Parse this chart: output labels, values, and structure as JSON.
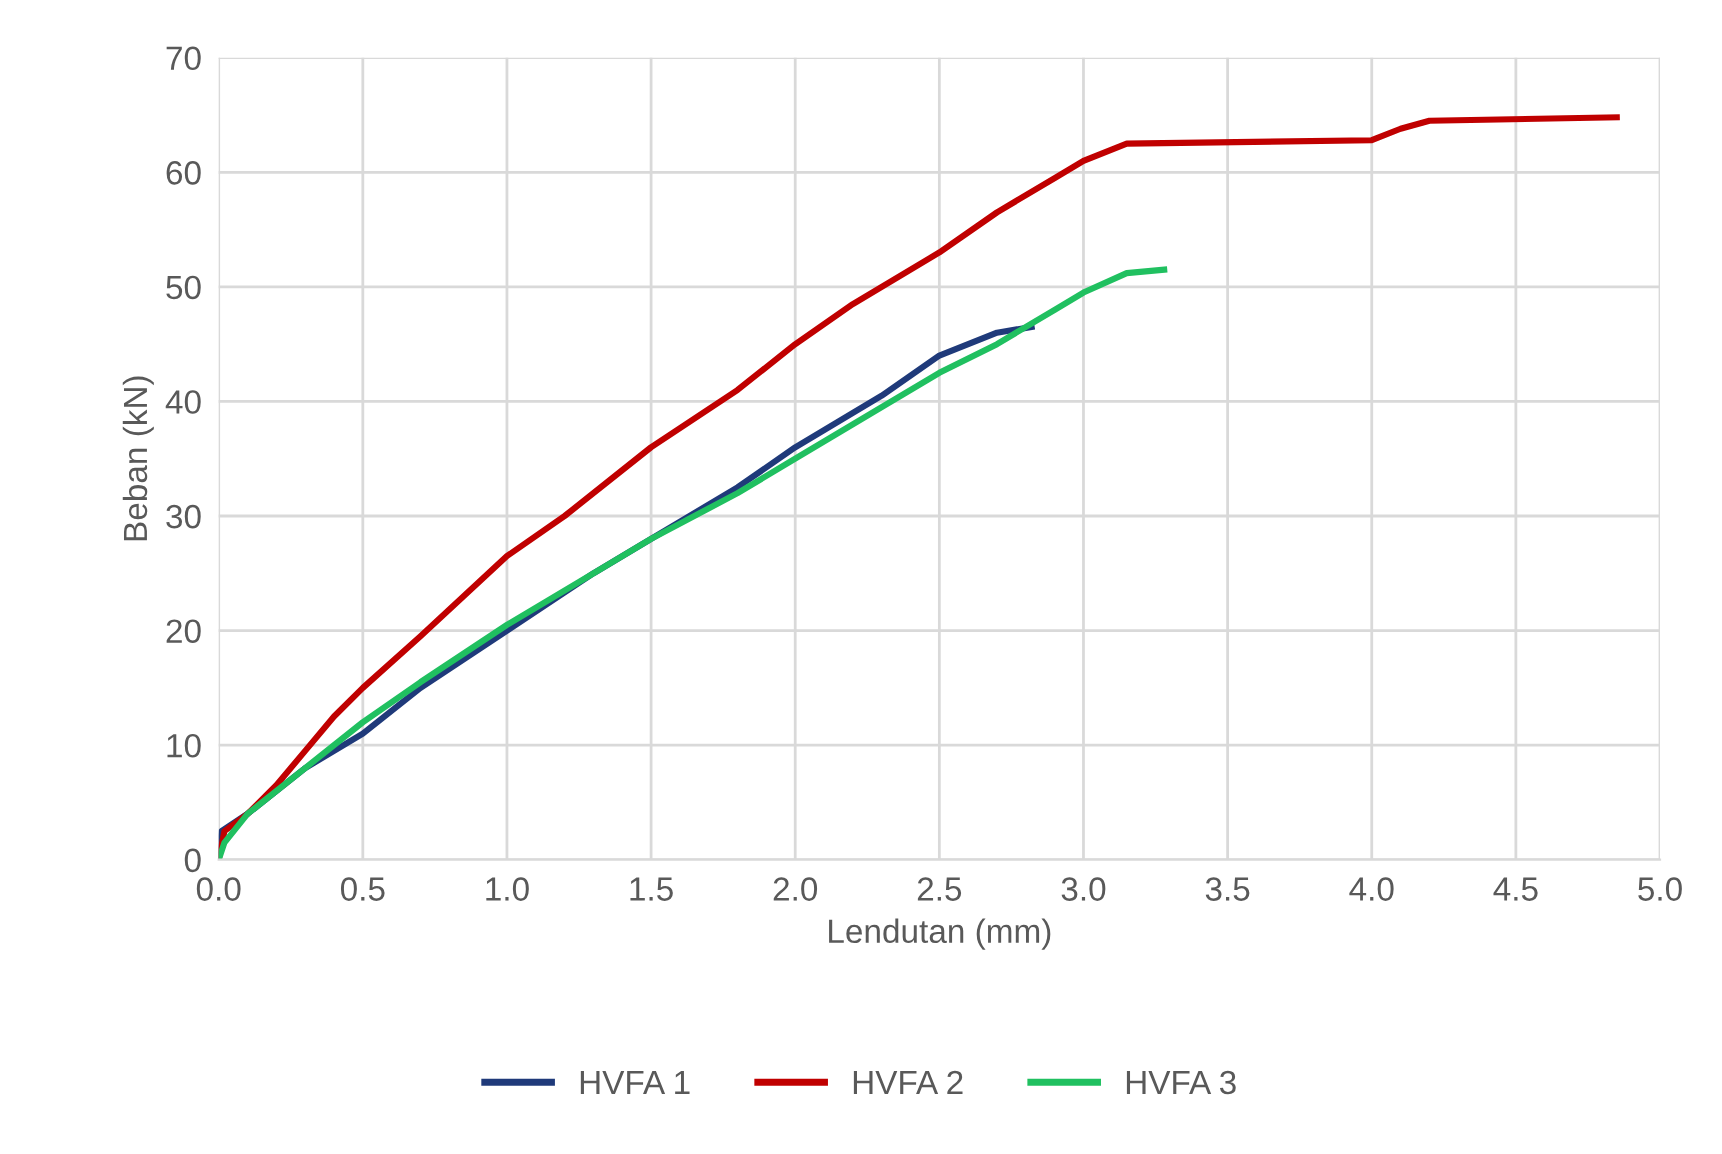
{
  "chart_data": {
    "type": "line",
    "xlabel": "Lendutan (mm)",
    "ylabel": "Beban (kN)",
    "xlim": [
      0,
      5
    ],
    "xticks": [
      {
        "value": 0,
        "label": "0.0"
      },
      {
        "value": 0.5,
        "label": "0.5"
      },
      {
        "value": 1,
        "label": "1.0"
      },
      {
        "value": 1.5,
        "label": "1.5"
      },
      {
        "value": 2,
        "label": "2.0"
      },
      {
        "value": 2.5,
        "label": "2.5"
      },
      {
        "value": 3,
        "label": "3.0"
      },
      {
        "value": 3.5,
        "label": "3.5"
      },
      {
        "value": 4,
        "label": "4.0"
      },
      {
        "value": 4.5,
        "label": "4.5"
      },
      {
        "value": 5,
        "label": "5.0"
      }
    ],
    "ylim": [
      0,
      70
    ],
    "yticks": [
      0,
      10,
      20,
      30,
      40,
      50,
      60,
      70
    ],
    "grid": true,
    "legend": "bottom",
    "marker": "none",
    "line_style": "solid",
    "series": [
      {
        "name": "HVFA 1",
        "color": "#1f3a7a",
        "x": [
          0,
          0.01,
          0.1,
          0.3,
          0.5,
          0.7,
          1.0,
          1.3,
          1.5,
          1.8,
          2.0,
          2.3,
          2.5,
          2.7,
          2.82
        ],
        "values": [
          0,
          2.5,
          4,
          8,
          11,
          15,
          20,
          25,
          28,
          32.5,
          36,
          40.5,
          44,
          46,
          46.5
        ]
      },
      {
        "name": "HVFA 2",
        "color": "#c00000",
        "x": [
          0,
          0.02,
          0.1,
          0.2,
          0.3,
          0.4,
          0.5,
          0.7,
          1.0,
          1.2,
          1.5,
          1.8,
          2.0,
          2.2,
          2.5,
          2.7,
          2.9,
          3.0,
          3.15,
          4.0,
          4.1,
          4.2,
          4.85
        ],
        "values": [
          0,
          2.5,
          4,
          6.5,
          9.5,
          12.5,
          15,
          19.5,
          26.5,
          30,
          36,
          41,
          45,
          48.5,
          53,
          56.5,
          59.5,
          61,
          62.5,
          62.8,
          63.8,
          64.5,
          64.8
        ]
      },
      {
        "name": "HVFA 3",
        "color": "#20c060",
        "x": [
          0,
          0.02,
          0.1,
          0.3,
          0.5,
          0.7,
          1.0,
          1.3,
          1.5,
          1.8,
          2.0,
          2.3,
          2.5,
          2.7,
          2.9,
          3.0,
          3.15,
          3.28
        ],
        "values": [
          0,
          1.5,
          4,
          8,
          12,
          15.5,
          20.5,
          25,
          28,
          32,
          35,
          39.5,
          42.5,
          45,
          48,
          49.5,
          51.2,
          51.5
        ]
      }
    ]
  }
}
